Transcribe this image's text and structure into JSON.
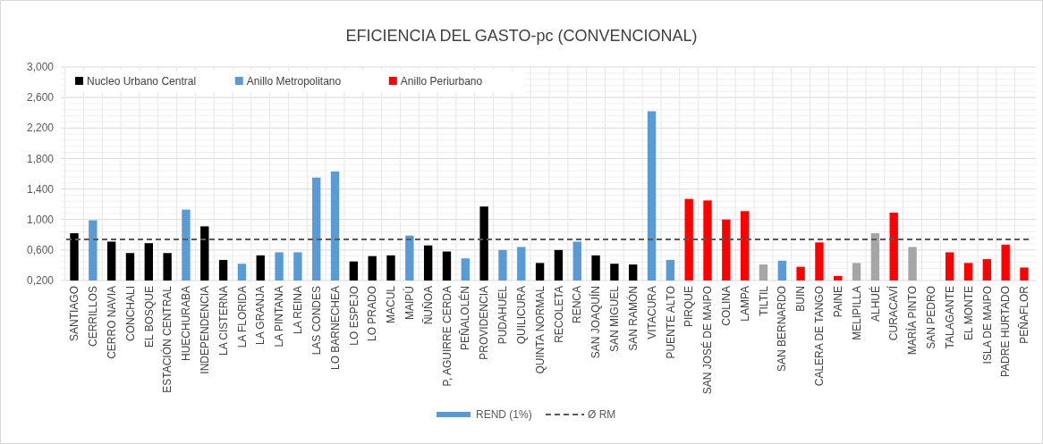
{
  "chart_data": {
    "type": "bar",
    "title": "EFICIENCIA DEL GASTO-pc (CONVENCIONAL)",
    "categories": [
      "SANTIAGO",
      "CERRILLOS",
      "CERRO NAVIA",
      "CONCHALI",
      "EL BOSQUE",
      "ESTACIÓN CENTRAL",
      "HUECHURABA",
      "INDEPENDENCIA",
      "LA CISTERNA",
      "LA FLORIDA",
      "LA GRANJA",
      "LA PINTANA",
      "LA REINA",
      "LAS CONDES",
      "LO BARNECHEA",
      "LO ESPEJO",
      "LO PRADO",
      "MACUL",
      "MAIPÚ",
      "ÑUÑOA",
      "P, AGUIRRE CERDA",
      "PEÑALOLÉN",
      "PROVIDENCIA",
      "PUDAHUEL",
      "QUILICURA",
      "QUINTA NORMAL",
      "RECOLETA",
      "RENCA",
      "SAN JOAQUÍN",
      "SAN MIGUEL",
      "SAN RAMÓN",
      "VITACURA",
      "PUENTE ALTO",
      "PIRQUE",
      "SAN JOSÉ DE MAIPO",
      "COLINA",
      "LAMPA",
      "TILTIL",
      "SAN BERNARDO",
      "BUIN",
      "CALERA DE TANGO",
      "PAINE",
      "MELIPILLA",
      "ALHUÉ",
      "CURACAVÍ",
      "MARÍA PINTO",
      "SAN PEDRO",
      "TALAGANTE",
      "EL MONTE",
      "ISLA DE MAIPO",
      "PADRE HURTADO",
      "PEÑAFLOR"
    ],
    "series": [
      {
        "name": "Nucleo Urbano Central",
        "color": "#000000",
        "values": [
          0.82,
          null,
          0.71,
          0.56,
          0.69,
          0.56,
          null,
          0.91,
          0.47,
          null,
          0.53,
          null,
          null,
          null,
          null,
          0.45,
          0.52,
          0.53,
          null,
          0.66,
          0.58,
          null,
          1.17,
          null,
          null,
          0.43,
          0.6,
          null,
          0.53,
          0.42,
          0.41,
          null,
          null,
          null,
          null,
          null,
          null,
          null,
          null,
          null,
          null,
          null,
          null,
          null,
          null,
          null,
          null,
          null,
          null,
          null,
          null,
          null
        ]
      },
      {
        "name": "Anillo Metropolitano",
        "color": "#5b9bd5",
        "values": [
          null,
          0.99,
          null,
          null,
          null,
          null,
          1.13,
          null,
          null,
          0.42,
          null,
          0.57,
          0.57,
          1.55,
          1.63,
          null,
          null,
          null,
          0.79,
          null,
          null,
          0.49,
          null,
          0.6,
          0.64,
          null,
          null,
          0.71,
          null,
          null,
          null,
          2.42,
          0.47,
          null,
          null,
          null,
          null,
          null,
          0.46,
          null,
          null,
          null,
          null,
          null,
          null,
          null,
          null,
          null,
          null,
          null,
          null,
          null
        ]
      },
      {
        "name": "Anillo Periurbano",
        "color": "#ff0000",
        "values": [
          null,
          null,
          null,
          null,
          null,
          null,
          null,
          null,
          null,
          null,
          null,
          null,
          null,
          null,
          null,
          null,
          null,
          null,
          null,
          null,
          null,
          null,
          null,
          null,
          null,
          null,
          null,
          null,
          null,
          null,
          null,
          null,
          null,
          1.27,
          1.25,
          1.0,
          1.11,
          null,
          null,
          0.38,
          0.7,
          0.26,
          null,
          null,
          1.09,
          null,
          null,
          0.57,
          0.43,
          0.48,
          0.67,
          0.37
        ]
      },
      {
        "color": "#a6a6a6",
        "values": [
          null,
          null,
          null,
          null,
          null,
          null,
          null,
          null,
          null,
          null,
          null,
          null,
          null,
          null,
          null,
          null,
          null,
          null,
          null,
          null,
          null,
          null,
          null,
          null,
          null,
          null,
          null,
          null,
          null,
          null,
          null,
          null,
          null,
          null,
          null,
          null,
          null,
          0.41,
          null,
          null,
          null,
          null,
          0.43,
          0.82,
          null,
          0.64,
          null,
          null,
          null,
          null,
          null,
          null
        ]
      }
    ],
    "ylim": [
      0.2,
      3.0
    ],
    "yticks": [
      {
        "value": 0.2,
        "label": "0,200"
      },
      {
        "value": 0.6,
        "label": "0,600"
      },
      {
        "value": 1.0,
        "label": "1,000"
      },
      {
        "value": 1.4,
        "label": "1,400"
      },
      {
        "value": 1.8,
        "label": "1,800"
      },
      {
        "value": 2.2,
        "label": "2,200"
      },
      {
        "value": 2.6,
        "label": "2,600"
      },
      {
        "value": 3.0,
        "label": "3,000"
      }
    ],
    "grid": true,
    "legend": "top left",
    "ref_lines": [
      {
        "axis": "y",
        "value": 0.74,
        "color": "#595959",
        "line_style": "dashed"
      }
    ],
    "annotations": [
      "REND (1%)",
      "Ø RM"
    ]
  }
}
